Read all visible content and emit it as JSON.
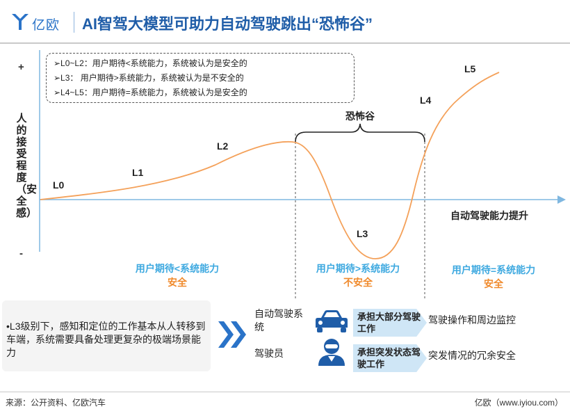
{
  "header": {
    "logo_text": "亿欧",
    "title": "AI智驾大模型可助力自动驾驶跳出“恐怖谷”"
  },
  "chart": {
    "y_axis_label": "人的接受程度（安全感）",
    "y_plus": "+",
    "y_minus": "-",
    "x_axis_label": "自动驾驶能力提升",
    "legend": [
      "➢L0~L2：用户期待<系统能力，系统被认为是安全的",
      "➢L3： 用户期待>系统能力，系统被认为是不安全的",
      "➢L4~L5：用户期待=系统能力，系统被认为是安全的"
    ],
    "valley_label": "恐怖谷",
    "levels": [
      "L0",
      "L1",
      "L2",
      "L3",
      "L4",
      "L5"
    ],
    "zones": [
      {
        "line1": "用户期待<系统能力",
        "line2": "安全"
      },
      {
        "line1": "用户期待>系统能力",
        "line2": "不安全"
      },
      {
        "line1": "用户期待=系统能力",
        "line2": "安全"
      }
    ],
    "colors": {
      "curve": "#f4a15a",
      "axis": "#7fb7e0",
      "zone_text": "#3ea9e0",
      "zone_status": "#f08a2c"
    }
  },
  "bottom": {
    "note": "•L3级别下，感知和定位的工作基本从人转移到车端，系统需要具备处理更复杂的极端场景能力",
    "rows": [
      {
        "role": "自动驾驶系统",
        "icon": "car-icon",
        "tag": "承担大部分驾驶工作",
        "task": "驾驶操作和周边监控"
      },
      {
        "role": "驾驶员",
        "icon": "driver-icon",
        "tag": "承担突发状态驾驶工作",
        "task": "突发情况的冗余安全"
      }
    ]
  },
  "footer": {
    "source": "来源：公开资料、亿欧汽车",
    "brand": "亿欧（www.iyiou.com）"
  }
}
